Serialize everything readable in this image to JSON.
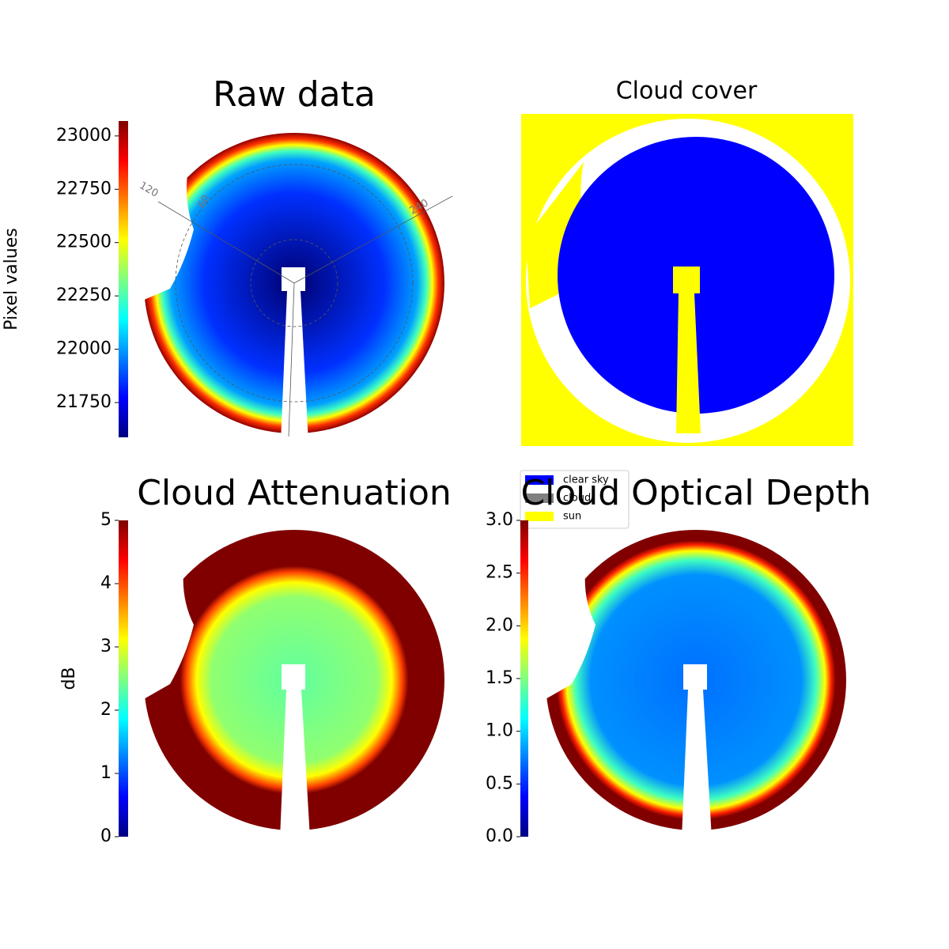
{
  "chart_data": [
    {
      "type": "image",
      "title": "Raw data",
      "ylabel": "Pixel values",
      "colormap": "jet",
      "ylim": [
        21587,
        23070
      ],
      "yticks": [
        21750,
        22000,
        22250,
        22500,
        22750,
        23000
      ],
      "polar_labels": [
        "120",
        "60",
        "240"
      ]
    },
    {
      "type": "image",
      "title": "Cloud cover",
      "categories": [
        "clear sky",
        "cloud",
        "sun"
      ],
      "colors": [
        "#0000ff",
        "#808080",
        "#ffff00"
      ]
    },
    {
      "type": "image",
      "title": "Cloud Attenuation",
      "ylabel": "dB",
      "colormap": "jet",
      "ylim": [
        0,
        5
      ],
      "yticks": [
        0,
        1,
        2,
        3,
        4,
        5
      ]
    },
    {
      "type": "image",
      "title": "Cloud Optical Depth",
      "colormap": "jet",
      "ylim": [
        0,
        3
      ],
      "yticks": [
        {
          "value": 0,
          "label": "0.0"
        },
        0.5,
        {
          "value": 1,
          "label": "1.0"
        },
        1.5,
        {
          "value": 2,
          "label": "2.0"
        },
        2.5,
        {
          "value": 3,
          "label": "3.0"
        }
      ]
    }
  ]
}
